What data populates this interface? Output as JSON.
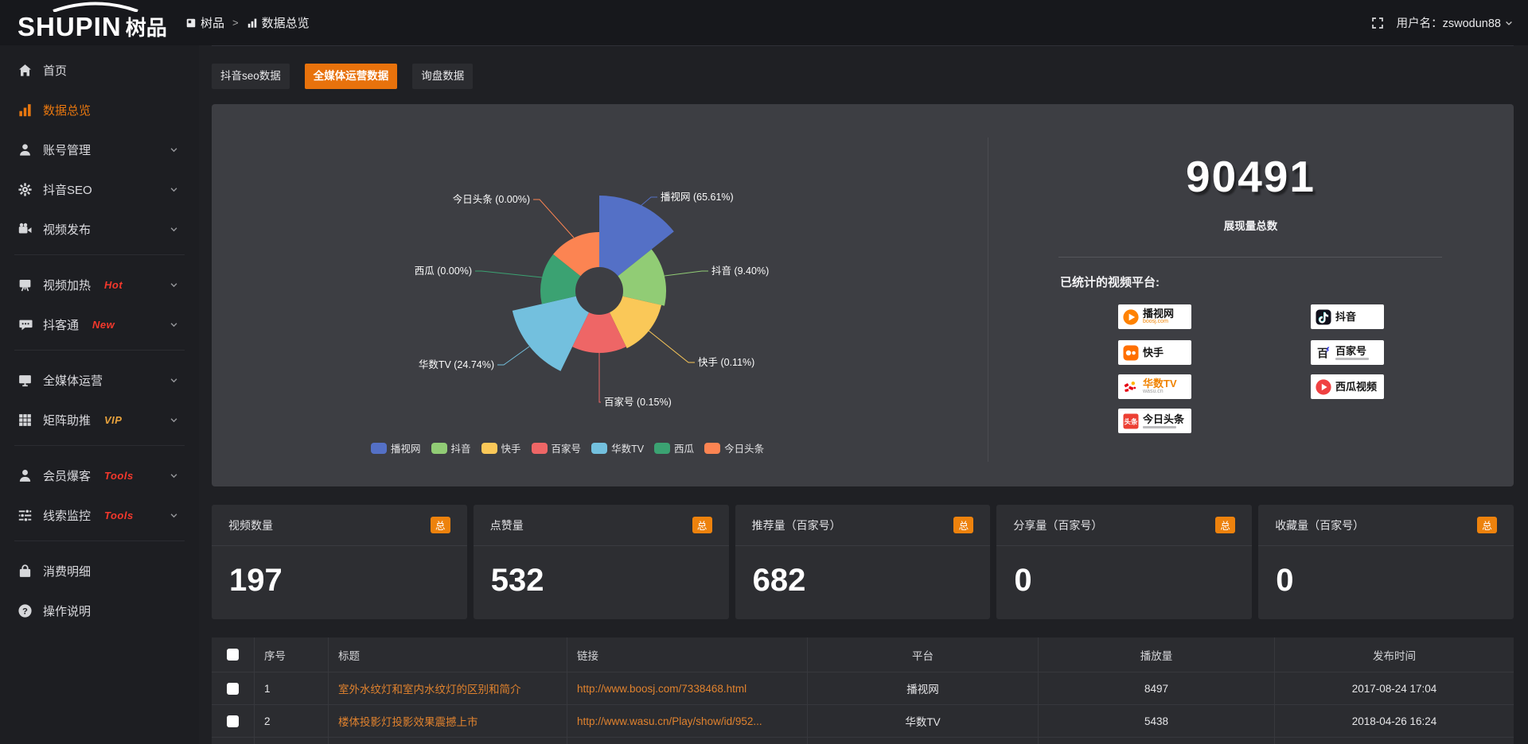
{
  "colors": {
    "accent": "#e8720c",
    "badge": "#ed820d",
    "link": "#e0822e"
  },
  "topbar": {
    "logo_en": "SHUPIN",
    "logo_cn": "树品",
    "breadcrumb": [
      {
        "key": "shupin",
        "icon": "app-grid-icon",
        "label": "树品"
      },
      {
        "key": "data-overview",
        "icon": "bar-chart-icon",
        "label": "数据总览"
      }
    ],
    "breadcrumb_separator": ">",
    "user_label": "用户名：zswodun88"
  },
  "sidebar": {
    "items": [
      {
        "key": "home",
        "icon": "home-icon",
        "label": "首页"
      },
      {
        "key": "data-overview",
        "icon": "bar-chart-icon",
        "label": "数据总览",
        "active": true
      },
      {
        "key": "account-management",
        "icon": "user-icon",
        "label": "账号管理",
        "chevron": true
      },
      {
        "key": "douyin-seo",
        "icon": "gear-icon",
        "label": "抖音SEO",
        "chevron": true
      },
      {
        "key": "video-publish",
        "icon": "video-camera-icon",
        "label": "视频发布",
        "chevron": true
      },
      {
        "divider": true
      },
      {
        "key": "video-heating",
        "icon": "board-icon",
        "label": "视频加热",
        "tag": "Hot",
        "tag_color": "#f5382c",
        "chevron": true
      },
      {
        "key": "douketong",
        "icon": "chat-icon",
        "label": "抖客通",
        "tag": "New",
        "tag_color": "#f5382c",
        "chevron": true
      },
      {
        "divider": true
      },
      {
        "key": "media-operation",
        "icon": "monitor-icon",
        "label": "全媒体运营",
        "chevron": true
      },
      {
        "key": "matrix-boost",
        "icon": "grid-icon",
        "label": "矩阵助推",
        "tag": "VIP",
        "tag_color": "#e7a23d",
        "chevron": true
      },
      {
        "divider": true
      },
      {
        "key": "member-burst",
        "icon": "person-icon",
        "label": "会员爆客",
        "tag": "Tools",
        "tag_color": "#f5382c",
        "chevron": true
      },
      {
        "key": "lead-monitor",
        "icon": "sliders-icon",
        "label": "线索监控",
        "tag": "Tools",
        "tag_color": "#f5382c",
        "chevron": true
      },
      {
        "divider": true
      },
      {
        "key": "consumption-detail",
        "icon": "bag-icon",
        "label": "消费明细"
      },
      {
        "key": "operation-guide",
        "icon": "help-icon",
        "label": "操作说明"
      }
    ]
  },
  "tabs": [
    {
      "key": "douyin-seo-data",
      "label": "抖音seo数据",
      "active": false
    },
    {
      "key": "media-operation-data",
      "label": "全媒体运营数据",
      "active": true
    },
    {
      "key": "inquiry-data",
      "label": "询盘数据",
      "active": false
    }
  ],
  "chart_data": {
    "type": "pie",
    "rose": true,
    "legend_position": "bottom",
    "items": [
      {
        "name": "播视网",
        "percent": 65.61,
        "color": "#5470c6"
      },
      {
        "name": "抖音",
        "percent": 9.4,
        "color": "#91cc75"
      },
      {
        "name": "快手",
        "percent": 0.11,
        "color": "#fac858"
      },
      {
        "name": "百家号",
        "percent": 0.15,
        "color": "#ee6666"
      },
      {
        "name": "华数TV",
        "percent": 24.74,
        "color": "#73c0de"
      },
      {
        "name": "西瓜",
        "percent": 0.0,
        "color": "#3ba272"
      },
      {
        "name": "今日头条",
        "percent": 0.0,
        "color": "#fc8452"
      }
    ]
  },
  "summary": {
    "total": "90491",
    "total_label": "展现量总数",
    "platforms_label": "已统计的视频平台:",
    "badges_left": [
      {
        "key": "boosj",
        "icon": "boosj-logo",
        "name": "播视网",
        "sub": "boosj.com",
        "sub_color": "#f08300"
      },
      {
        "key": "kuaishou",
        "icon": "kuaishou-logo",
        "name": "快手",
        "sub": ""
      },
      {
        "key": "wasu",
        "icon": "wasu-logo",
        "name": "华数TV",
        "name_color": "#f08300",
        "sub": "wasu.cn",
        "sub_color": "#999999"
      },
      {
        "key": "toutiao",
        "icon": "toutiao-logo",
        "name": "今日头条",
        "sub": "",
        "fine_print": true
      }
    ],
    "badges_right": [
      {
        "key": "douyin",
        "icon": "douyin-logo",
        "name": "抖音",
        "sub": ""
      },
      {
        "key": "baijiahao",
        "icon": "baijiahao-logo",
        "name": "百家号",
        "sub": "",
        "fine_print": true
      },
      {
        "key": "xigua",
        "icon": "xigua-logo",
        "name": "西瓜视频",
        "sub": ""
      }
    ]
  },
  "stat_cards": [
    {
      "key": "video-count",
      "label": "视频数量",
      "badge": "总",
      "value": "197"
    },
    {
      "key": "like-count",
      "label": "点赞量",
      "badge": "总",
      "value": "532"
    },
    {
      "key": "recommend-count",
      "label": "推荐量（百家号）",
      "badge": "总",
      "value": "682"
    },
    {
      "key": "share-count",
      "label": "分享量（百家号）",
      "badge": "总",
      "value": "0"
    },
    {
      "key": "favorite-count",
      "label": "收藏量（百家号）",
      "badge": "总",
      "value": "0"
    }
  ],
  "table": {
    "headers": [
      "序号",
      "标题",
      "链接",
      "平台",
      "播放量",
      "发布时间"
    ],
    "rows": [
      {
        "no": "1",
        "title": "室外水纹灯和室内水纹灯的区别和简介",
        "link": "http://www.boosj.com/7338468.html",
        "platform": "播视网",
        "plays": "8497",
        "time": "2017-08-24 17:04"
      },
      {
        "no": "2",
        "title": "楼体投影灯投影效果震撼上市",
        "link": "http://www.wasu.cn/Play/show/id/952...",
        "platform": "华数TV",
        "plays": "5438",
        "time": "2018-04-26 16:24"
      },
      {
        "no": "",
        "title": "",
        "link": "",
        "platform": "",
        "plays": "",
        "time": ""
      }
    ]
  }
}
